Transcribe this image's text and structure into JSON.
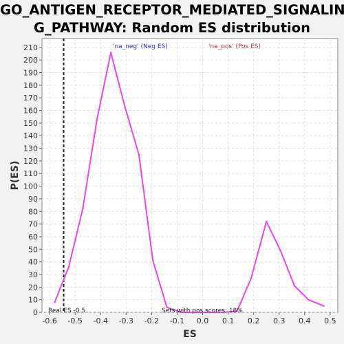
{
  "chart_data": {
    "type": "line",
    "title_lines": [
      "GO_ANTIGEN_RECEPTOR_MEDIATED_SIGNALIN",
      "G_PATHWAY: Random ES distribution"
    ],
    "xlabel": "ES",
    "ylabel": "P(ES)",
    "xlim": [
      -0.63,
      0.53
    ],
    "ylim": [
      0,
      217
    ],
    "x_ticks": [
      -0.6,
      -0.5,
      -0.4,
      -0.3,
      -0.2,
      -0.1,
      0.0,
      0.1,
      0.2,
      0.3,
      0.4,
      0.5
    ],
    "x_tick_labels": [
      "-0.6",
      "-0.5",
      "-0.4",
      "-0.3",
      "-0.2",
      "-0.1",
      "0.0",
      "0.1",
      "0.2",
      "0.3",
      "0.4",
      "0.5"
    ],
    "y_ticks": [
      0,
      10,
      20,
      30,
      40,
      50,
      60,
      70,
      80,
      90,
      100,
      110,
      120,
      130,
      140,
      150,
      160,
      170,
      180,
      190,
      200,
      210
    ],
    "grid": true,
    "series": [
      {
        "color": "#ee44ee",
        "x": [
          -0.58,
          -0.525,
          -0.47,
          -0.415,
          -0.36,
          -0.305,
          -0.25,
          -0.195,
          -0.14,
          -0.085,
          -0.03,
          0.025,
          0.08,
          0.135,
          0.19,
          0.25,
          0.305,
          0.36,
          0.415,
          0.475
        ],
        "y": [
          8,
          36,
          82,
          152,
          206,
          163,
          125,
          41,
          4,
          0,
          0,
          0,
          0,
          1,
          27,
          72,
          49,
          21,
          10,
          5
        ]
      }
    ],
    "real_es_line": -0.545,
    "annotations": {
      "real_es": "Real ES -0.5",
      "sets_pos": "Sets with pos scores: 18%"
    },
    "legend": {
      "neg": {
        "label": "'na_neg' (Neg ES)",
        "color": "#3333cc"
      },
      "pos": {
        "label": "'na_pos' (Pos ES)",
        "color": "#cc3333"
      }
    }
  }
}
